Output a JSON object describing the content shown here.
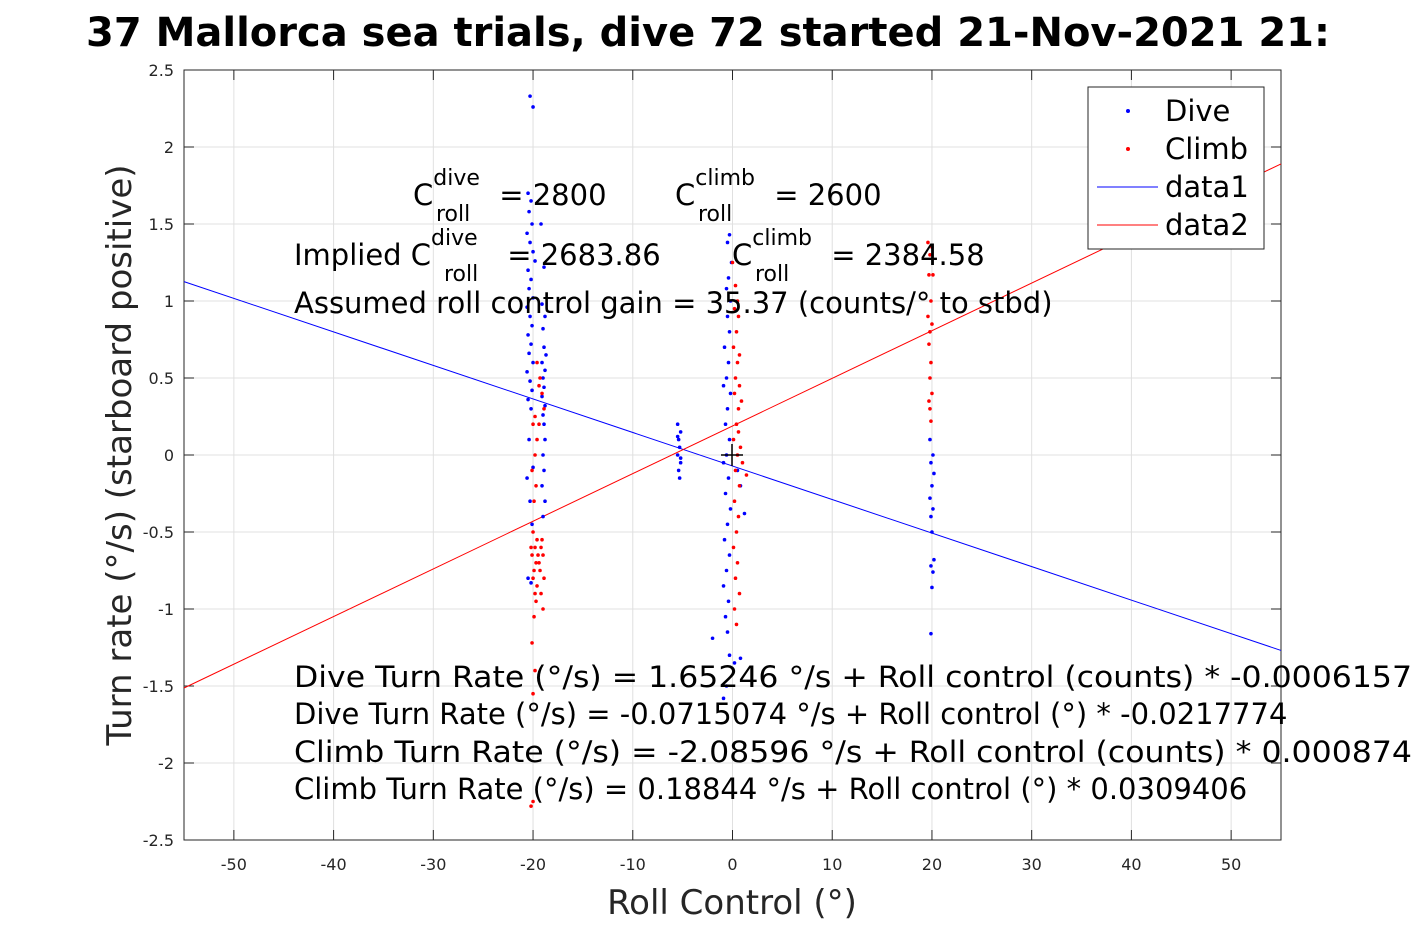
{
  "chart_data": {
    "type": "scatter",
    "title": "37 Mallorca sea trials, dive 72 started 21-Nov-2021 21:",
    "xlabel": "Roll Control (°)",
    "ylabel": "Turn rate (°/s) (starboard positive)",
    "xlim": [
      -55,
      55
    ],
    "ylim": [
      -2.5,
      2.5
    ],
    "xticks": [
      -50,
      -40,
      -30,
      -20,
      -10,
      0,
      10,
      20,
      30,
      40,
      50
    ],
    "yticks": [
      -2.5,
      -2,
      -1.5,
      -1,
      -0.5,
      0,
      0.5,
      1,
      1.5,
      2,
      2.5
    ],
    "grid": true,
    "legend_position": "top-right",
    "legend": [
      "Dive",
      "Climb",
      "data1",
      "data2"
    ],
    "colors": {
      "dive": "#0000ff",
      "climb": "#ff0000",
      "marker": "#000000",
      "axis": "#262626",
      "grid": "#e0e0e0"
    },
    "series": [
      {
        "name": "Dive",
        "kind": "points",
        "color": "#0000ff",
        "points": [
          [
            -20.3,
            2.33
          ],
          [
            -20.0,
            2.26
          ],
          [
            -20.5,
            1.7
          ],
          [
            -20.2,
            1.65
          ],
          [
            -20.4,
            1.58
          ],
          [
            -20.1,
            1.5
          ],
          [
            -20.6,
            1.44
          ],
          [
            -20.3,
            1.38
          ],
          [
            -20.0,
            1.32
          ],
          [
            -19.8,
            1.26
          ],
          [
            -20.5,
            1.2
          ],
          [
            -20.2,
            1.14
          ],
          [
            -20.4,
            1.08
          ],
          [
            -20.0,
            1.02
          ],
          [
            -20.6,
            0.96
          ],
          [
            -20.3,
            0.9
          ],
          [
            -20.1,
            0.84
          ],
          [
            -20.5,
            0.78
          ],
          [
            -20.2,
            0.72
          ],
          [
            -20.4,
            0.66
          ],
          [
            -20.0,
            0.6
          ],
          [
            -20.6,
            0.54
          ],
          [
            -20.3,
            0.48
          ],
          [
            -20.1,
            0.42
          ],
          [
            -20.5,
            0.36
          ],
          [
            -20.2,
            0.3
          ],
          [
            -20.4,
            0.1
          ],
          [
            -20.0,
            -0.08
          ],
          [
            -20.6,
            -0.15
          ],
          [
            -20.3,
            -0.3
          ],
          [
            -20.1,
            -0.45
          ],
          [
            -20.5,
            -0.8
          ],
          [
            -20.2,
            -0.83
          ],
          [
            -19.2,
            1.5
          ],
          [
            -18.9,
            1.22
          ],
          [
            -19.1,
            0.98
          ],
          [
            -18.8,
            0.9
          ],
          [
            -19.0,
            0.82
          ],
          [
            -18.9,
            0.7
          ],
          [
            -18.7,
            0.65
          ],
          [
            -19.1,
            0.6
          ],
          [
            -18.8,
            0.55
          ],
          [
            -19.0,
            0.5
          ],
          [
            -18.9,
            0.44
          ],
          [
            -19.1,
            0.38
          ],
          [
            -18.8,
            0.32
          ],
          [
            -19.0,
            0.26
          ],
          [
            -18.9,
            0.2
          ],
          [
            -18.8,
            0.1
          ],
          [
            -19.0,
            0.0
          ],
          [
            -18.9,
            -0.1
          ],
          [
            -19.1,
            -0.2
          ],
          [
            -18.8,
            -0.3
          ],
          [
            -19.0,
            -0.4
          ],
          [
            -5.5,
            0.2
          ],
          [
            -5.2,
            0.15
          ],
          [
            -5.4,
            0.1
          ],
          [
            -5.3,
            0.05
          ],
          [
            -5.5,
            0.0
          ],
          [
            -5.2,
            -0.05
          ],
          [
            -5.4,
            -0.1
          ],
          [
            -5.3,
            -0.15
          ],
          [
            -5.5,
            0.12
          ],
          [
            -5.2,
            -0.02
          ],
          [
            -0.3,
            1.43
          ],
          [
            -0.5,
            1.38
          ],
          [
            -0.1,
            1.25
          ],
          [
            -0.4,
            1.15
          ],
          [
            -0.6,
            1.08
          ],
          [
            -0.2,
            1.0
          ],
          [
            -0.5,
            0.9
          ],
          [
            -0.3,
            0.8
          ],
          [
            -0.8,
            0.7
          ],
          [
            -0.4,
            0.6
          ],
          [
            -0.6,
            0.5
          ],
          [
            -0.9,
            0.45
          ],
          [
            -0.2,
            0.4
          ],
          [
            -0.5,
            0.3
          ],
          [
            -0.7,
            0.2
          ],
          [
            -0.3,
            0.1
          ],
          [
            -0.6,
            0.0
          ],
          [
            -0.9,
            -0.05
          ],
          [
            -0.4,
            -0.15
          ],
          [
            -0.7,
            -0.25
          ],
          [
            -0.2,
            -0.35
          ],
          [
            -0.5,
            -0.45
          ],
          [
            -0.8,
            -0.55
          ],
          [
            -0.3,
            -0.65
          ],
          [
            -0.6,
            -0.75
          ],
          [
            -0.9,
            -0.85
          ],
          [
            -0.4,
            -0.95
          ],
          [
            -0.7,
            -1.05
          ],
          [
            -0.5,
            -1.15
          ],
          [
            -0.3,
            -1.3
          ],
          [
            0.2,
            -1.35
          ],
          [
            0.8,
            -1.32
          ],
          [
            -0.6,
            -1.5
          ],
          [
            -0.9,
            -1.58
          ],
          [
            -2.0,
            -1.19
          ],
          [
            0.5,
            -0.1
          ],
          [
            0.8,
            -0.2
          ],
          [
            1.2,
            -0.38
          ],
          [
            19.8,
            0.1
          ],
          [
            20.1,
            0.0
          ],
          [
            19.9,
            -0.05
          ],
          [
            20.2,
            -0.12
          ],
          [
            20.0,
            -0.2
          ],
          [
            19.8,
            -0.28
          ],
          [
            20.1,
            -0.35
          ],
          [
            19.9,
            -0.4
          ],
          [
            20.0,
            -0.5
          ],
          [
            20.2,
            -0.68
          ],
          [
            19.9,
            -0.72
          ],
          [
            20.1,
            -0.76
          ],
          [
            20.0,
            -0.86
          ],
          [
            19.9,
            -1.16
          ]
        ]
      },
      {
        "name": "Climb",
        "kind": "points",
        "color": "#ff0000",
        "points": [
          [
            -20.0,
            -2.25
          ],
          [
            -20.2,
            -2.28
          ],
          [
            -20.0,
            -1.55
          ],
          [
            -19.8,
            -1.4
          ],
          [
            -20.1,
            -1.22
          ],
          [
            -19.9,
            -1.05
          ],
          [
            -19.7,
            -0.95
          ],
          [
            -19.8,
            0.25
          ],
          [
            -20.0,
            0.2
          ],
          [
            -19.6,
            0.1
          ],
          [
            -19.8,
            0.0
          ],
          [
            -20.1,
            -0.1
          ],
          [
            -19.7,
            -0.2
          ],
          [
            -19.9,
            -0.3
          ],
          [
            -20.0,
            -0.5
          ],
          [
            -19.6,
            -0.55
          ],
          [
            -19.8,
            -0.6
          ],
          [
            -20.1,
            -0.65
          ],
          [
            -19.7,
            -0.7
          ],
          [
            -19.9,
            -0.75
          ],
          [
            -20.0,
            -0.8
          ],
          [
            -19.6,
            -0.85
          ],
          [
            -19.8,
            -0.9
          ],
          [
            -20.2,
            -0.6
          ],
          [
            -19.5,
            -0.65
          ],
          [
            -19.4,
            -0.7
          ],
          [
            -19.3,
            -0.75
          ],
          [
            -19.2,
            -0.6
          ],
          [
            -19.1,
            -0.55
          ],
          [
            -19.0,
            -0.65
          ],
          [
            -18.9,
            -0.8
          ],
          [
            -19.2,
            -0.9
          ],
          [
            -19.0,
            -1.0
          ],
          [
            -19.3,
            0.5
          ],
          [
            -19.1,
            0.4
          ],
          [
            -18.9,
            0.3
          ],
          [
            -19.4,
            0.2
          ],
          [
            -19.6,
            0.6
          ],
          [
            -19.4,
            0.45
          ],
          [
            0.0,
            1.25
          ],
          [
            0.3,
            1.1
          ],
          [
            0.5,
            1.0
          ],
          [
            0.2,
            0.95
          ],
          [
            0.6,
            0.9
          ],
          [
            0.4,
            0.8
          ],
          [
            0.1,
            0.7
          ],
          [
            0.5,
            0.6
          ],
          [
            0.3,
            0.5
          ],
          [
            0.7,
            0.45
          ],
          [
            0.2,
            0.4
          ],
          [
            0.6,
            0.3
          ],
          [
            0.4,
            0.2
          ],
          [
            0.1,
            0.1
          ],
          [
            0.5,
            0.0
          ],
          [
            0.3,
            -0.1
          ],
          [
            0.7,
            -0.2
          ],
          [
            0.2,
            -0.3
          ],
          [
            0.6,
            -0.4
          ],
          [
            0.4,
            -0.5
          ],
          [
            0.1,
            -0.6
          ],
          [
            0.5,
            -0.7
          ],
          [
            0.3,
            -0.8
          ],
          [
            0.7,
            -0.9
          ],
          [
            0.2,
            -1.0
          ],
          [
            0.4,
            -1.1
          ],
          [
            0.6,
            0.15
          ],
          [
            0.8,
            0.05
          ],
          [
            1.0,
            -0.05
          ],
          [
            1.4,
            -0.13
          ],
          [
            0.9,
            0.35
          ],
          [
            0.7,
            0.65
          ],
          [
            19.6,
            1.38
          ],
          [
            20.0,
            1.35
          ],
          [
            19.8,
            1.3
          ],
          [
            19.7,
            1.17
          ],
          [
            20.1,
            1.17
          ],
          [
            19.9,
            1.0
          ],
          [
            19.6,
            0.9
          ],
          [
            20.0,
            0.85
          ],
          [
            19.8,
            0.8
          ],
          [
            19.7,
            0.72
          ],
          [
            19.9,
            0.6
          ],
          [
            19.8,
            0.5
          ],
          [
            20.0,
            0.4
          ],
          [
            19.7,
            0.35
          ],
          [
            19.8,
            0.3
          ],
          [
            19.9,
            0.22
          ]
        ]
      },
      {
        "name": "data1",
        "kind": "line",
        "color": "#0000ff",
        "x": [
          -55,
          55
        ],
        "y": [
          1.126,
          -1.269
        ]
      },
      {
        "name": "data2",
        "kind": "line",
        "color": "#ff0000",
        "x": [
          -55,
          55
        ],
        "y": [
          -1.513,
          1.89
        ]
      }
    ],
    "center_marker": [
      0,
      0
    ]
  },
  "annotations": {
    "c_dive": {
      "base": "C",
      "sup": "dive",
      "sub": "roll",
      "value": " = 2800"
    },
    "c_climb": {
      "base": "C",
      "sup": "climb",
      "sub": "roll",
      "value": " = 2600"
    },
    "implied_prefix": "Implied C",
    "implied_dive": {
      "sup": "dive",
      "sub": "roll",
      "value": " = 2683.86"
    },
    "implied_climb": {
      "base": "C",
      "sup": "climb",
      "sub": "roll",
      "value": " = 2384.58"
    },
    "gain": "Assumed roll control gain = 35.37 (counts/° to stbd)",
    "eq1": "Dive Turn Rate (°/s) = 1.65246 °/s + Roll control (counts) * -0.0006157",
    "eq2": "Dive Turn Rate (°/s) = -0.0715074 °/s + Roll control (°) * -0.0217774",
    "eq3": "Climb Turn Rate (°/s) = -2.08596 °/s + Roll control (counts) * 0.000874",
    "eq4": "Climb Turn Rate (°/s) = 0.18844 °/s + Roll control (°) * 0.0309406"
  }
}
